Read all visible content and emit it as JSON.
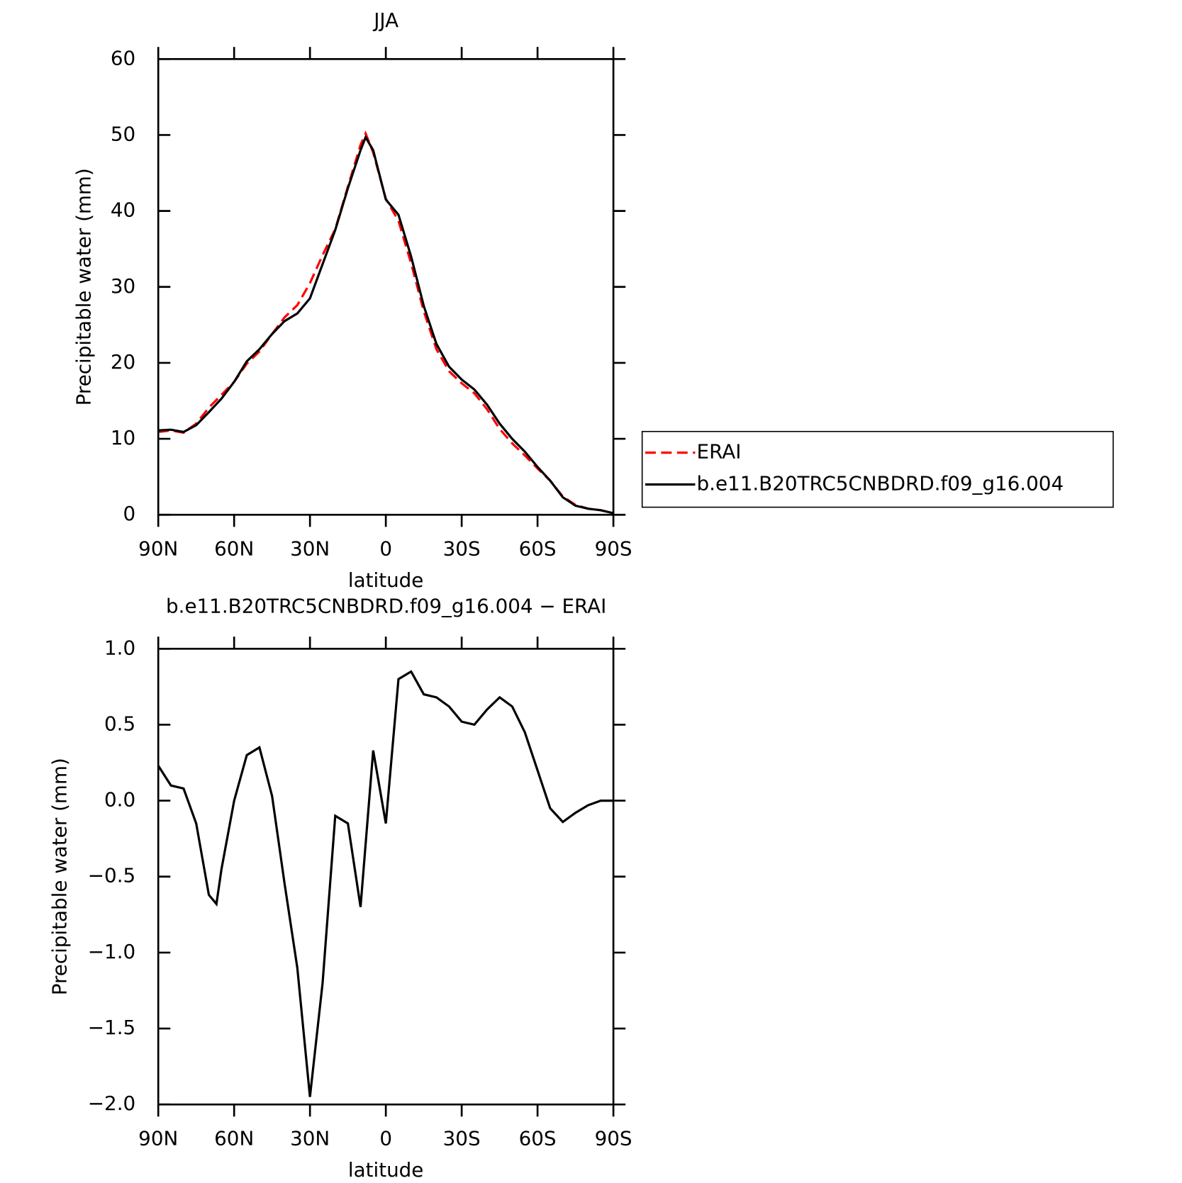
{
  "chart_data": [
    {
      "type": "line",
      "title": "JJA",
      "xlabel": "latitude",
      "ylabel": "Precipitable water (mm)",
      "x": [
        90,
        85,
        80,
        75,
        70,
        65,
        60,
        55,
        50,
        45,
        40,
        35,
        30,
        25,
        20,
        15,
        10,
        8,
        5,
        0,
        -5,
        -10,
        -15,
        -20,
        -25,
        -30,
        -35,
        -40,
        -45,
        -50,
        -55,
        -60,
        -65,
        -70,
        -75,
        -80,
        -85,
        -90
      ],
      "series": [
        {
          "name": "ERAI",
          "color": "#ff0000",
          "dashed": true,
          "values": [
            10.9,
            11.1,
            10.8,
            12.0,
            14.1,
            15.8,
            17.5,
            19.9,
            21.5,
            23.8,
            26.0,
            27.6,
            30.5,
            34.2,
            37.6,
            43.2,
            48.7,
            50.2,
            47.7,
            41.6,
            38.7,
            33.1,
            26.8,
            21.8,
            18.9,
            17.3,
            16.0,
            13.9,
            11.3,
            9.4,
            7.8,
            6.1,
            4.5,
            2.4,
            1.3,
            0.8,
            0.6,
            0.2
          ]
        },
        {
          "name": "b.e11.B20TRC5CNBDRD.f09_g16.004",
          "color": "#000000",
          "dashed": false,
          "values": [
            11.1,
            11.2,
            10.9,
            11.8,
            13.5,
            15.3,
            17.5,
            20.2,
            21.8,
            23.8,
            25.5,
            26.5,
            28.5,
            33.0,
            37.5,
            43.0,
            48.0,
            49.7,
            48.0,
            41.5,
            39.5,
            34.0,
            27.5,
            22.5,
            19.5,
            17.8,
            16.5,
            14.5,
            12.0,
            10.0,
            8.3,
            6.3,
            4.5,
            2.3,
            1.2,
            0.8,
            0.6,
            0.2
          ]
        }
      ],
      "xlim": [
        90,
        -90
      ],
      "xticks": [
        {
          "value": 90,
          "label": "90N"
        },
        {
          "value": 60,
          "label": "60N"
        },
        {
          "value": 30,
          "label": "30N"
        },
        0,
        {
          "value": -30,
          "label": "30S"
        },
        {
          "value": -60,
          "label": "60S"
        },
        {
          "value": -90,
          "label": "90S"
        }
      ],
      "ylim": [
        0,
        60
      ],
      "yticks": [
        0,
        10,
        20,
        30,
        40,
        50,
        60
      ],
      "legend": "outside-right"
    },
    {
      "type": "line",
      "title": "b.e11.B20TRC5CNBDRD.f09_g16.004 − ERAI",
      "xlabel": "latitude",
      "ylabel": "Precipitable water (mm)",
      "x": [
        90,
        85,
        80,
        75,
        70,
        67,
        65,
        60,
        55,
        50,
        45,
        40,
        35,
        30,
        25,
        20,
        15,
        10,
        5,
        0,
        -5,
        -10,
        -15,
        -20,
        -25,
        -30,
        -35,
        -40,
        -45,
        -50,
        -55,
        -60,
        -65,
        -70,
        -75,
        -80,
        -85,
        -90
      ],
      "series": [
        {
          "name": "b.e11.B20TRC5CNBDRD.f09_g16.004 − ERAI",
          "color": "#000000",
          "dashed": false,
          "values": [
            0.23,
            0.1,
            0.08,
            -0.15,
            -0.62,
            -0.68,
            -0.45,
            0.0,
            0.3,
            0.35,
            0.03,
            -0.55,
            -1.1,
            -1.95,
            -1.2,
            -0.1,
            -0.15,
            -0.7,
            0.33,
            -0.15,
            0.8,
            0.85,
            0.7,
            0.68,
            0.62,
            0.52,
            0.5,
            0.6,
            0.68,
            0.62,
            0.45,
            0.2,
            -0.05,
            -0.14,
            -0.08,
            -0.03,
            0.0,
            0.0
          ]
        }
      ],
      "xlim": [
        90,
        -90
      ],
      "xticks": [
        {
          "value": 90,
          "label": "90N"
        },
        {
          "value": 60,
          "label": "60N"
        },
        {
          "value": 30,
          "label": "30N"
        },
        0,
        {
          "value": -30,
          "label": "30S"
        },
        {
          "value": -60,
          "label": "60S"
        },
        {
          "value": -90,
          "label": "90S"
        }
      ],
      "ylim": [
        -2.0,
        1.0
      ],
      "yticks": [
        {
          "value": -2.0,
          "label": "−2.0"
        },
        {
          "value": -1.5,
          "label": "−1.5"
        },
        {
          "value": -1.0,
          "label": "−1.0"
        },
        {
          "value": -0.5,
          "label": "−0.5"
        },
        {
          "value": 0,
          "label": "0.0"
        },
        {
          "value": 0.5,
          "label": "0.5"
        },
        {
          "value": 1.0,
          "label": "1.0"
        }
      ]
    }
  ]
}
